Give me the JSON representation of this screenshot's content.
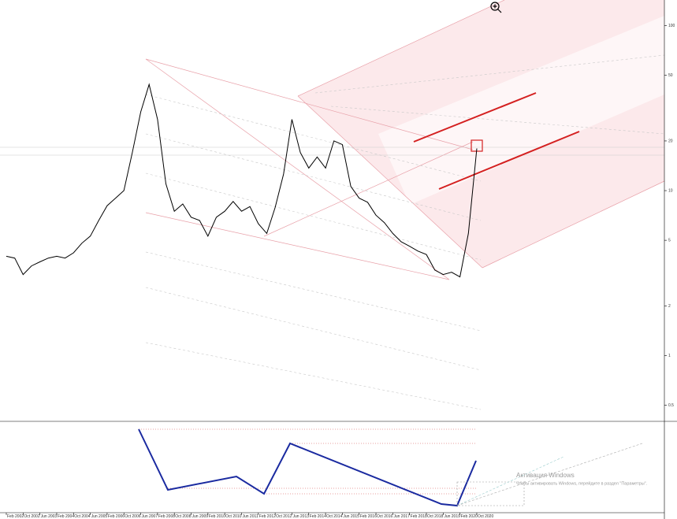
{
  "chart_data": {
    "type": "line",
    "log_scale": true,
    "color": "#000000",
    "x": [
      "Feb 2002",
      "Jun 2002",
      "Oct 2002",
      "Feb 2003",
      "Jun 2003",
      "Oct 2003",
      "Feb 2004",
      "Jun 2004",
      "Oct 2004",
      "Feb 2005",
      "Jun 2005",
      "Oct 2005",
      "Feb 2006",
      "Jun 2006",
      "Oct 2006",
      "Feb 2007",
      "Jun 2007",
      "Oct 2007",
      "Feb 2008",
      "Jun 2008",
      "Oct 2008",
      "Feb 2009",
      "Jun 2009",
      "Oct 2009",
      "Feb 2010",
      "Jun 2010",
      "Oct 2010",
      "Feb 2011",
      "Jun 2011",
      "Oct 2011",
      "Feb 2012",
      "Jun 2012",
      "Oct 2012",
      "Feb 2013",
      "Jun 2013",
      "Oct 2013",
      "Feb 2014",
      "Jun 2014",
      "Oct 2014",
      "Feb 2015",
      "Jun 2015",
      "Oct 2015",
      "Feb 2016",
      "Jun 2016",
      "Oct 2016",
      "Feb 2017",
      "Jun 2017",
      "Oct 2017",
      "Feb 2018",
      "Jun 2018",
      "Oct 2018",
      "Feb 2019",
      "Jun 2019",
      "Oct 2019",
      "Feb 2020",
      "Jun 2020",
      "Oct 2020"
    ],
    "values": [
      4.0,
      3.9,
      3.1,
      3.5,
      3.7,
      3.9,
      4.0,
      3.9,
      4.2,
      4.8,
      5.3,
      6.6,
      8.1,
      9.0,
      10,
      17,
      30,
      44,
      27,
      11,
      7.5,
      8.3,
      6.9,
      6.6,
      5.3,
      6.9,
      7.5,
      8.6,
      7.5,
      8.0,
      6.3,
      5.5,
      7.9,
      12.6,
      27,
      17,
      13.7,
      16,
      13.7,
      20,
      19,
      10.6,
      9.0,
      8.5,
      7.1,
      6.4,
      5.5,
      4.9,
      4.6,
      4.3,
      4.1,
      3.3,
      3.1,
      3.2,
      3.0,
      5.5,
      18
    ],
    "xticks": [
      "Feb 2002",
      "Oct 2002",
      "Jun 2003",
      "Feb 2004",
      "Oct 2004",
      "Jun 2005",
      "Feb 2006",
      "Oct 2006",
      "Jun 2007",
      "Feb 2008",
      "Oct 2008",
      "Jun 2009",
      "Feb 2010",
      "Oct 2010",
      "Jun 2011",
      "Feb 2012",
      "Oct 2012",
      "Jun 2013",
      "Feb 2014",
      "Oct 2014",
      "Jun 2015",
      "Feb 2016",
      "Oct 2016",
      "Jun 2017",
      "Feb 2018",
      "Oct 2018",
      "Jun 2019",
      "Feb 2020",
      "Oct 2020"
    ],
    "ylim": [
      0.4,
      128
    ],
    "yticks": [
      0.5,
      1,
      2,
      5,
      10,
      20,
      50,
      100
    ],
    "watermark_title": "Активация Windows",
    "watermark_text": "Чтобы активировать Windows, перейдите в раздел \"Параметры\"."
  }
}
